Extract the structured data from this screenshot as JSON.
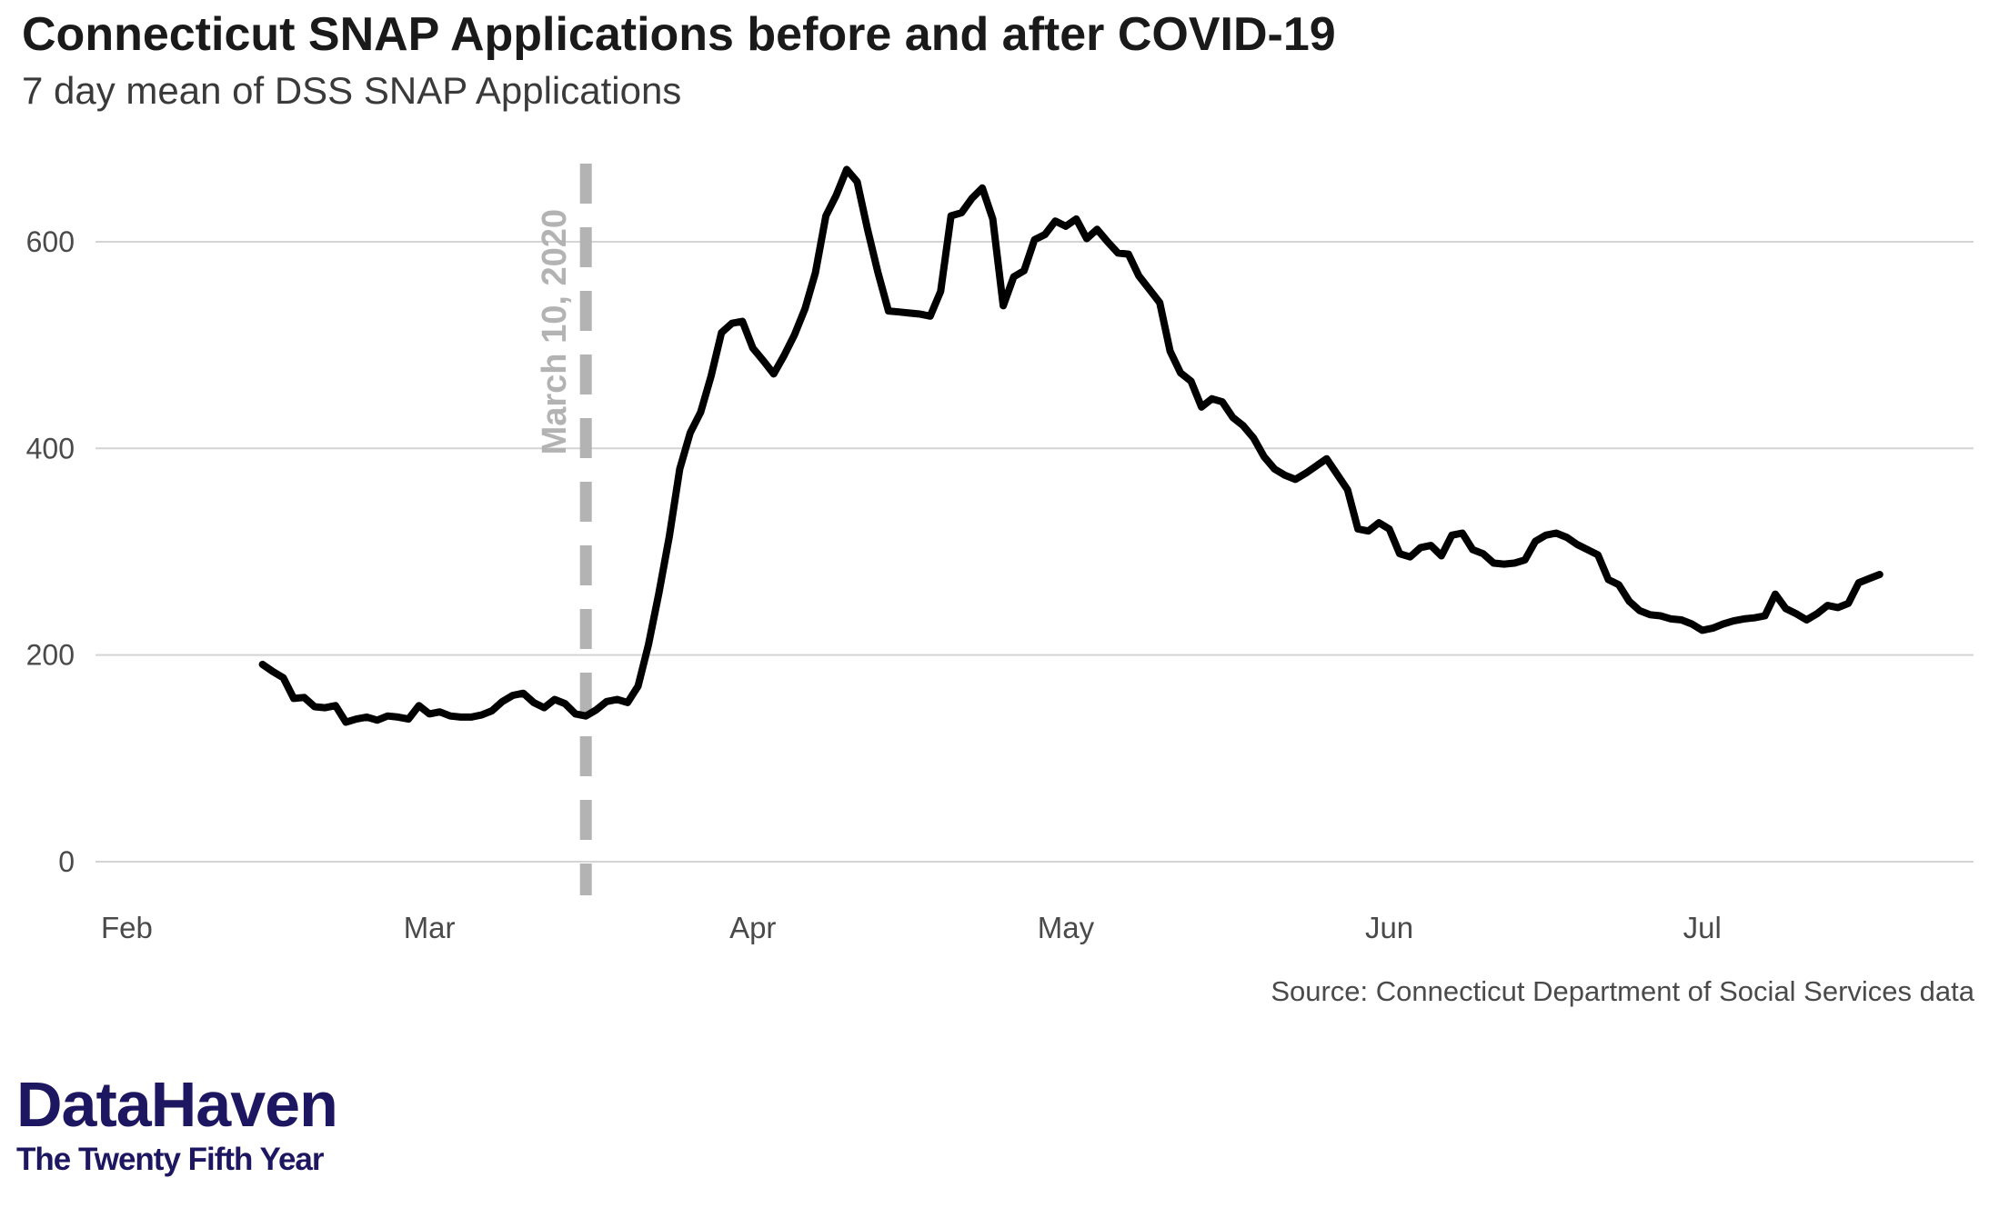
{
  "chart_data": {
    "type": "line",
    "title": "Connecticut SNAP Applications before and after COVID-19",
    "subtitle": "7 day mean of DSS SNAP Applications",
    "xlabel": "",
    "ylabel": "",
    "ylim": [
      0,
      680
    ],
    "xlim": [
      "2020-01-29",
      "2020-07-27"
    ],
    "x_tick_labels": [
      {
        "label": "Feb",
        "date": "2020-02-01"
      },
      {
        "label": "Mar",
        "date": "2020-03-01"
      },
      {
        "label": "Apr",
        "date": "2020-04-01"
      },
      {
        "label": "May",
        "date": "2020-05-01"
      },
      {
        "label": "Jun",
        "date": "2020-06-01"
      },
      {
        "label": "Jul",
        "date": "2020-07-01"
      }
    ],
    "y_ticks": [
      0,
      200,
      400,
      600
    ],
    "grid": "horizontal",
    "line_color": "#000000",
    "reference_line": {
      "date": "2020-03-16",
      "label": "March 10, 2020",
      "color": "#b3b3b3",
      "style": "dashed"
    },
    "source": "Source: Connecticut Department of Social Services data",
    "series": [
      {
        "start_date": "2020-02-14",
        "values": [
          191,
          184,
          178,
          158,
          159,
          150,
          149,
          151,
          135,
          138,
          140,
          137,
          141,
          140,
          138,
          151,
          143,
          145,
          141,
          140,
          140,
          142,
          146,
          155,
          161,
          163,
          154,
          149,
          157,
          153,
          143,
          141,
          147,
          155,
          157,
          154,
          170,
          210,
          260,
          315,
          380,
          415,
          435,
          470,
          512,
          521,
          523,
          497,
          485,
          472,
          490,
          510,
          535,
          570,
          625,
          645,
          670,
          658,
          612,
          570,
          533,
          532,
          531,
          530,
          528,
          552,
          625,
          628,
          642,
          652,
          622,
          538,
          566,
          572,
          602,
          607,
          620,
          615,
          622,
          603,
          612,
          600,
          589,
          588,
          567,
          554,
          541,
          494,
          473,
          465,
          440,
          448,
          445,
          430,
          422,
          410,
          392,
          380,
          374,
          370,
          376,
          383,
          390,
          375,
          360,
          322,
          320,
          328,
          322,
          298,
          295,
          304,
          306,
          296,
          316,
          318,
          302,
          298,
          289,
          288,
          289,
          292,
          310,
          316,
          318,
          314,
          307,
          302,
          297,
          273,
          268,
          252,
          243,
          239,
          238,
          235,
          234,
          230,
          224,
          226,
          230,
          233,
          235,
          236,
          238,
          259,
          245,
          240,
          234,
          240,
          248,
          246,
          250,
          270,
          274,
          278
        ]
      }
    ]
  },
  "logo": {
    "name": "DataHaven",
    "tagline": "The Twenty Fifth Year"
  }
}
